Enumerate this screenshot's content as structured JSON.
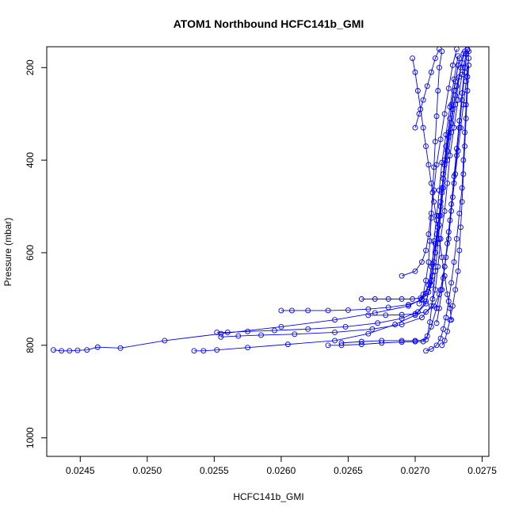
{
  "chart_data": {
    "type": "scatter",
    "title": "ATOM1 Northbound HCFC141b_GMI",
    "xlabel": "HCFC141b_GMI",
    "ylabel": "Pressure (mbar)",
    "xlim": [
      0.02425,
      0.02755
    ],
    "ylim": [
      1040,
      155
    ],
    "y_reversed": true,
    "grid": false,
    "legend": "none",
    "color": "#0000ff",
    "marker": "open-circle",
    "line_style": "lines-and-points",
    "x_ticks": [
      0.0245,
      0.025,
      0.0255,
      0.026,
      0.0265,
      0.027,
      0.0275
    ],
    "x_tick_labels": [
      "0.0245",
      "0.0250",
      "0.0255",
      "0.0260",
      "0.0265",
      "0.0270",
      "0.0275"
    ],
    "y_ticks": [
      200,
      400,
      600,
      800,
      1000
    ],
    "y_tick_labels": [
      "200",
      "400",
      "600",
      "800",
      "1000"
    ],
    "series": [
      {
        "points": [
          [
            0.0243,
            810
          ],
          [
            0.02436,
            812
          ],
          [
            0.02442,
            812
          ],
          [
            0.02448,
            811
          ],
          [
            0.02455,
            810
          ],
          [
            0.02463,
            804
          ],
          [
            0.0248,
            806
          ],
          [
            0.02513,
            790
          ],
          [
            0.02555,
            775
          ],
          [
            0.026,
            760
          ],
          [
            0.0264,
            745
          ],
          [
            0.0267,
            730
          ],
          [
            0.02695,
            715
          ],
          [
            0.02705,
            700
          ],
          [
            0.0271,
            670
          ],
          [
            0.02712,
            630
          ],
          [
            0.02715,
            580
          ],
          [
            0.02718,
            520
          ],
          [
            0.0272,
            460
          ],
          [
            0.02722,
            400
          ],
          [
            0.02725,
            340
          ],
          [
            0.02727,
            280
          ],
          [
            0.0273,
            230
          ],
          [
            0.02733,
            180
          ]
        ]
      },
      {
        "points": [
          [
            0.02535,
            812
          ],
          [
            0.02542,
            812
          ],
          [
            0.02552,
            810
          ],
          [
            0.02575,
            805
          ],
          [
            0.02605,
            798
          ],
          [
            0.0264,
            790
          ],
          [
            0.02665,
            775
          ],
          [
            0.02685,
            755
          ],
          [
            0.027,
            735
          ],
          [
            0.02708,
            710
          ],
          [
            0.02712,
            660
          ],
          [
            0.02715,
            600
          ],
          [
            0.02718,
            540
          ],
          [
            0.0272,
            470
          ],
          [
            0.02722,
            410
          ],
          [
            0.02725,
            350
          ],
          [
            0.02728,
            290
          ],
          [
            0.02731,
            240
          ],
          [
            0.02735,
            190
          ]
        ]
      },
      {
        "points": [
          [
            0.02552,
            772
          ],
          [
            0.0256,
            772
          ],
          [
            0.02575,
            770
          ],
          [
            0.02595,
            768
          ],
          [
            0.0262,
            765
          ],
          [
            0.02648,
            760
          ],
          [
            0.02672,
            752
          ],
          [
            0.0269,
            742
          ],
          [
            0.02702,
            728
          ],
          [
            0.02708,
            705
          ],
          [
            0.02712,
            670
          ],
          [
            0.02714,
            620
          ],
          [
            0.02716,
            560
          ],
          [
            0.02719,
            500
          ],
          [
            0.02721,
            440
          ],
          [
            0.02724,
            380
          ],
          [
            0.02727,
            320
          ],
          [
            0.0273,
            260
          ],
          [
            0.02734,
            200
          ],
          [
            0.02737,
            165
          ]
        ]
      },
      {
        "points": [
          [
            0.02555,
            782
          ],
          [
            0.02568,
            780
          ],
          [
            0.02585,
            778
          ],
          [
            0.0261,
            776
          ],
          [
            0.0264,
            772
          ],
          [
            0.02668,
            765
          ],
          [
            0.0269,
            755
          ],
          [
            0.02705,
            740
          ],
          [
            0.02712,
            715
          ],
          [
            0.02715,
            680
          ],
          [
            0.02717,
            630
          ],
          [
            0.02719,
            570
          ],
          [
            0.02722,
            510
          ],
          [
            0.02724,
            450
          ],
          [
            0.02726,
            390
          ],
          [
            0.02729,
            330
          ],
          [
            0.02732,
            270
          ],
          [
            0.02735,
            215
          ],
          [
            0.02738,
            170
          ]
        ]
      },
      {
        "points": [
          [
            0.026,
            725
          ],
          [
            0.02608,
            725
          ],
          [
            0.0262,
            725
          ],
          [
            0.02635,
            725
          ],
          [
            0.0265,
            724
          ],
          [
            0.02665,
            722
          ],
          [
            0.0268,
            718
          ],
          [
            0.02695,
            712
          ],
          [
            0.02705,
            702
          ],
          [
            0.0271,
            685
          ],
          [
            0.02713,
            650
          ],
          [
            0.02715,
            600
          ],
          [
            0.02717,
            545
          ],
          [
            0.02719,
            490
          ],
          [
            0.02721,
            430
          ],
          [
            0.02723,
            370
          ],
          [
            0.02726,
            310
          ],
          [
            0.02729,
            250
          ],
          [
            0.02732,
            195
          ]
        ]
      },
      {
        "points": [
          [
            0.0266,
            700
          ],
          [
            0.0267,
            700
          ],
          [
            0.0268,
            700
          ],
          [
            0.0269,
            700
          ],
          [
            0.02698,
            700
          ],
          [
            0.02704,
            698
          ],
          [
            0.02708,
            688
          ],
          [
            0.02711,
            665
          ],
          [
            0.02713,
            625
          ],
          [
            0.02714,
            575
          ],
          [
            0.02716,
            520
          ],
          [
            0.02718,
            465
          ],
          [
            0.0272,
            405
          ],
          [
            0.02723,
            345
          ],
          [
            0.02726,
            285
          ],
          [
            0.02729,
            225
          ],
          [
            0.02732,
            175
          ]
        ]
      },
      {
        "points": [
          [
            0.02635,
            800
          ],
          [
            0.02645,
            800
          ],
          [
            0.0266,
            798
          ],
          [
            0.02675,
            795
          ],
          [
            0.0269,
            793
          ],
          [
            0.027,
            792
          ],
          [
            0.02706,
            792
          ],
          [
            0.02709,
            780
          ],
          [
            0.02711,
            750
          ],
          [
            0.02713,
            700
          ],
          [
            0.02715,
            640
          ],
          [
            0.02717,
            580
          ],
          [
            0.02719,
            520
          ],
          [
            0.02721,
            460
          ],
          [
            0.02724,
            400
          ],
          [
            0.02727,
            340
          ],
          [
            0.0273,
            280
          ],
          [
            0.02733,
            220
          ],
          [
            0.02736,
            170
          ]
        ]
      },
      {
        "points": [
          [
            0.02645,
            795
          ],
          [
            0.0266,
            792
          ],
          [
            0.02675,
            790
          ],
          [
            0.0269,
            790
          ],
          [
            0.027,
            790
          ],
          [
            0.02708,
            788
          ],
          [
            0.02712,
            760
          ],
          [
            0.02716,
            720
          ],
          [
            0.02719,
            680
          ],
          [
            0.02722,
            630
          ],
          [
            0.02725,
            570
          ],
          [
            0.02727,
            510
          ],
          [
            0.02729,
            450
          ],
          [
            0.02731,
            390
          ],
          [
            0.02733,
            330
          ],
          [
            0.02735,
            270
          ],
          [
            0.02737,
            210
          ],
          [
            0.02739,
            160
          ]
        ]
      },
      {
        "points": [
          [
            0.02665,
            735
          ],
          [
            0.02678,
            735
          ],
          [
            0.0269,
            734
          ],
          [
            0.027,
            732
          ],
          [
            0.02708,
            728
          ],
          [
            0.02714,
            715
          ],
          [
            0.02718,
            690
          ],
          [
            0.02721,
            655
          ],
          [
            0.02723,
            610
          ],
          [
            0.02725,
            555
          ],
          [
            0.02727,
            495
          ],
          [
            0.02729,
            435
          ],
          [
            0.02731,
            375
          ],
          [
            0.02733,
            315
          ],
          [
            0.02735,
            255
          ],
          [
            0.02737,
            200
          ],
          [
            0.02739,
            162
          ]
        ]
      },
      {
        "points": [
          [
            0.0269,
            650
          ],
          [
            0.027,
            640
          ],
          [
            0.02705,
            620
          ],
          [
            0.02708,
            595
          ],
          [
            0.0271,
            560
          ],
          [
            0.02712,
            515
          ],
          [
            0.02714,
            465
          ],
          [
            0.02716,
            410
          ],
          [
            0.02719,
            355
          ],
          [
            0.02722,
            300
          ],
          [
            0.02725,
            245
          ],
          [
            0.02728,
            195
          ],
          [
            0.02731,
            160
          ]
        ]
      },
      {
        "points": [
          [
            0.02703,
            710
          ],
          [
            0.02706,
            690
          ],
          [
            0.02708,
            660
          ],
          [
            0.0271,
            620
          ],
          [
            0.02711,
            575
          ],
          [
            0.02712,
            525
          ],
          [
            0.02713,
            470
          ],
          [
            0.02714,
            415
          ],
          [
            0.02715,
            360
          ],
          [
            0.02716,
            305
          ],
          [
            0.02717,
            250
          ],
          [
            0.02718,
            200
          ],
          [
            0.0272,
            165
          ]
        ]
      },
      {
        "points": [
          [
            0.02708,
            812
          ],
          [
            0.02712,
            808
          ],
          [
            0.02716,
            800
          ],
          [
            0.02719,
            785
          ],
          [
            0.02721,
            765
          ],
          [
            0.02723,
            740
          ],
          [
            0.02725,
            705
          ],
          [
            0.02727,
            665
          ],
          [
            0.02729,
            620
          ],
          [
            0.02731,
            570
          ],
          [
            0.02733,
            515
          ],
          [
            0.02735,
            460
          ],
          [
            0.02736,
            400
          ],
          [
            0.02737,
            340
          ],
          [
            0.02738,
            280
          ],
          [
            0.02739,
            220
          ],
          [
            0.0274,
            165
          ]
        ]
      },
      {
        "points": [
          [
            0.0272,
            800
          ],
          [
            0.02722,
            790
          ],
          [
            0.02724,
            770
          ],
          [
            0.02726,
            745
          ],
          [
            0.02728,
            715
          ],
          [
            0.0273,
            680
          ],
          [
            0.02732,
            640
          ],
          [
            0.02733,
            595
          ],
          [
            0.02734,
            545
          ],
          [
            0.02735,
            490
          ],
          [
            0.02736,
            430
          ],
          [
            0.02737,
            370
          ],
          [
            0.02738,
            310
          ],
          [
            0.02739,
            250
          ],
          [
            0.0274,
            195
          ]
        ]
      },
      {
        "points": [
          [
            0.027,
            330
          ],
          [
            0.02703,
            300
          ],
          [
            0.02706,
            270
          ],
          [
            0.02709,
            240
          ],
          [
            0.02712,
            210
          ],
          [
            0.02715,
            180
          ],
          [
            0.02718,
            160
          ]
        ]
      },
      {
        "points": [
          [
            0.02698,
            180
          ],
          [
            0.027,
            210
          ],
          [
            0.02702,
            250
          ],
          [
            0.02704,
            290
          ],
          [
            0.02706,
            330
          ],
          [
            0.02708,
            370
          ],
          [
            0.0271,
            410
          ],
          [
            0.02712,
            450
          ],
          [
            0.02714,
            490
          ],
          [
            0.02716,
            530
          ],
          [
            0.02718,
            570
          ],
          [
            0.0272,
            610
          ],
          [
            0.02722,
            650
          ],
          [
            0.02724,
            690
          ],
          [
            0.02726,
            720
          ],
          [
            0.02727,
            745
          ]
        ]
      },
      {
        "points": [
          [
            0.0274,
            180
          ],
          [
            0.02738,
            230
          ],
          [
            0.02736,
            280
          ],
          [
            0.02734,
            330
          ],
          [
            0.02732,
            380
          ],
          [
            0.0273,
            430
          ],
          [
            0.02728,
            480
          ],
          [
            0.02726,
            530
          ],
          [
            0.02724,
            580
          ],
          [
            0.02722,
            630
          ],
          [
            0.0272,
            680
          ],
          [
            0.02718,
            720
          ],
          [
            0.02716,
            752
          ]
        ]
      }
    ]
  }
}
